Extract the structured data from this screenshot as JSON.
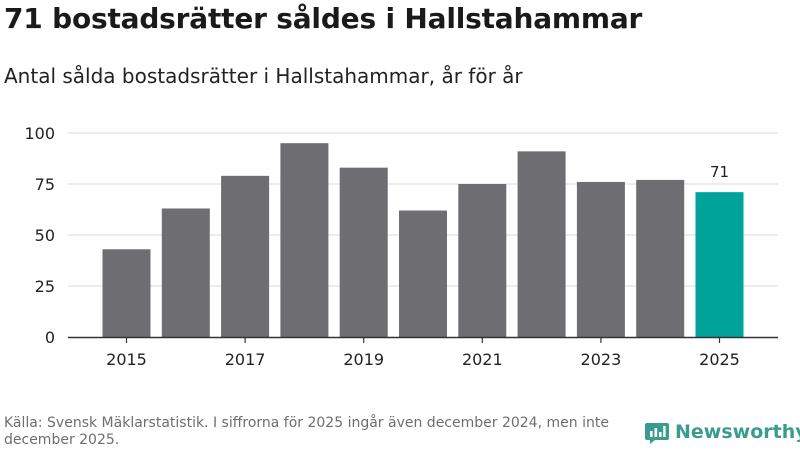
{
  "title": "71 bostadsrätter såldes i Hallstahammar",
  "subtitle": "Antal sålda bostadsrätter i Hallstahammar, år för år",
  "footer": "Källa: Svensk Mäklarstatistik. I siffrorna för 2025 ingår även december 2024, men inte december 2025.",
  "brand": "Newsworthy",
  "colors": {
    "bar": "#6e6d72",
    "highlight": "#00a39a",
    "grid": "#d9d9d9",
    "axis": "#333333",
    "brand": "#3a9c8f"
  },
  "chart_data": {
    "type": "bar",
    "categories": [
      "2015",
      "2016",
      "2017",
      "2018",
      "2019",
      "2020",
      "2021",
      "2022",
      "2023",
      "2024",
      "2025"
    ],
    "values": [
      43,
      63,
      79,
      95,
      83,
      62,
      75,
      91,
      76,
      77,
      71
    ],
    "x_tick_labels": [
      "2015",
      "2017",
      "2019",
      "2021",
      "2023",
      "2025"
    ],
    "y_ticks": [
      0,
      25,
      50,
      75,
      100
    ],
    "ylim": [
      0,
      100
    ],
    "highlight_index": 10,
    "data_labels": [
      {
        "index": 10,
        "text": "71"
      }
    ],
    "title": "71 bostadsrätter såldes i Hallstahammar",
    "xlabel": "",
    "ylabel": "",
    "grid": true
  }
}
